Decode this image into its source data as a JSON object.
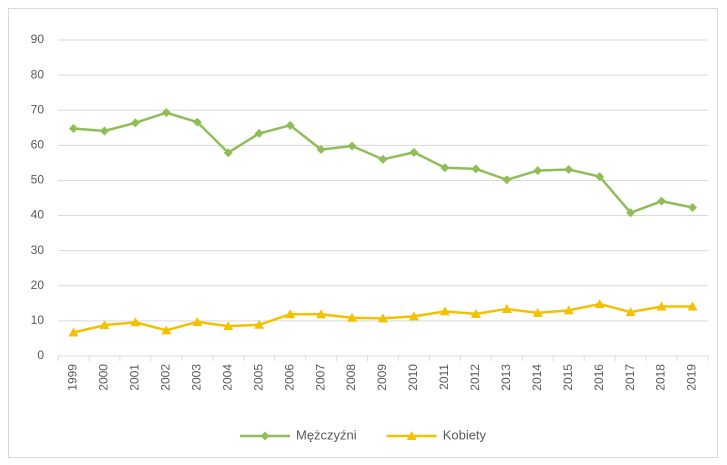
{
  "chart_data": {
    "type": "line",
    "categories": [
      "1999",
      "2000",
      "2001",
      "2002",
      "2003",
      "2004",
      "2005",
      "2006",
      "2007",
      "2008",
      "2009",
      "2010",
      "2011",
      "2012",
      "2013",
      "2014",
      "2015",
      "2016",
      "2017",
      "2018",
      "2019"
    ],
    "series": [
      {
        "name": "Mężczyźni",
        "color": "#8fbe57",
        "marker": "diamond",
        "values": [
          64.8,
          64.1,
          66.4,
          69.3,
          66.6,
          57.9,
          63.4,
          65.7,
          58.8,
          59.8,
          56.0,
          58.0,
          53.6,
          53.3,
          50.2,
          52.8,
          53.1,
          51.1,
          40.8,
          44.1,
          42.3
        ]
      },
      {
        "name": "Kobiety",
        "color": "#f2c200",
        "marker": "triangle",
        "values": [
          6.7,
          8.8,
          9.6,
          7.3,
          9.7,
          8.5,
          8.9,
          11.9,
          11.9,
          10.9,
          10.7,
          11.3,
          12.7,
          12.0,
          13.4,
          12.3,
          13.0,
          14.8,
          12.5,
          14.1,
          14.1
        ]
      }
    ],
    "ylim": [
      0,
      90
    ],
    "yticks": [
      0,
      10,
      20,
      30,
      40,
      50,
      60,
      70,
      80,
      90
    ],
    "grid": true,
    "legend": "bottom"
  }
}
